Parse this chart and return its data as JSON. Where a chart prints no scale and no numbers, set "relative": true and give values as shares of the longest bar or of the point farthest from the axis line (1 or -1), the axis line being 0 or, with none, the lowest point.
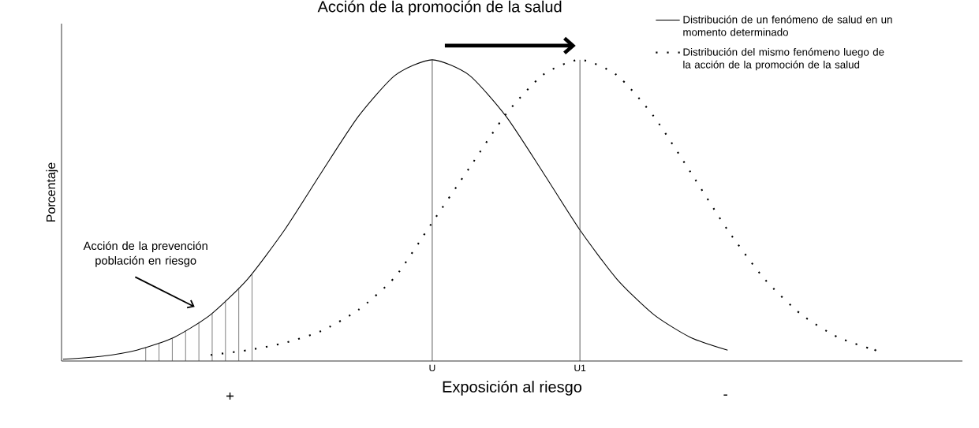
{
  "chart_data": {
    "type": "line",
    "relative": true,
    "title": "Acción de la promoción de la salud",
    "xlabel": "Exposición al riesgo",
    "ylabel": "Porcentaje",
    "categories": [
      null,
      null,
      null,
      null,
      null,
      null,
      null,
      null,
      null,
      null,
      "U",
      null,
      null,
      null,
      "U1",
      null,
      null,
      null,
      null,
      null,
      null,
      null,
      null,
      null,
      null
    ],
    "series": [
      {
        "name": "Distribución de un fenómeno de salud en un momento determinado",
        "color": "#000000",
        "line_style": "solid",
        "values": [
          0.006,
          0.015,
          0.036,
          0.078,
          0.154,
          0.272,
          0.435,
          0.626,
          0.812,
          0.949,
          1,
          0.949,
          0.812,
          0.626,
          0.435,
          0.272,
          0.154,
          0.078,
          0.036,
          null,
          null,
          null,
          null,
          null,
          null
        ]
      },
      {
        "name": "Distribución del mismo fenómeno luego de la acción de la promoción de la salud",
        "color": "#000000",
        "line_style": "dotted",
        "values": [
          null,
          null,
          null,
          null,
          0.02,
          0.036,
          0.06,
          0.1,
          0.17,
          0.28,
          0.46,
          0.64,
          0.82,
          0.95,
          1,
          0.949,
          0.812,
          0.626,
          0.435,
          0.272,
          0.154,
          0.078,
          0.036,
          null,
          null
        ]
      }
    ],
    "ref_lines": [
      {
        "axis": "x",
        "value": "U"
      },
      {
        "axis": "x",
        "value": "U1"
      }
    ],
    "annotations": [
      "Acción de la prevención población en riesgo",
      "+",
      "-"
    ],
    "legend": "top right"
  }
}
